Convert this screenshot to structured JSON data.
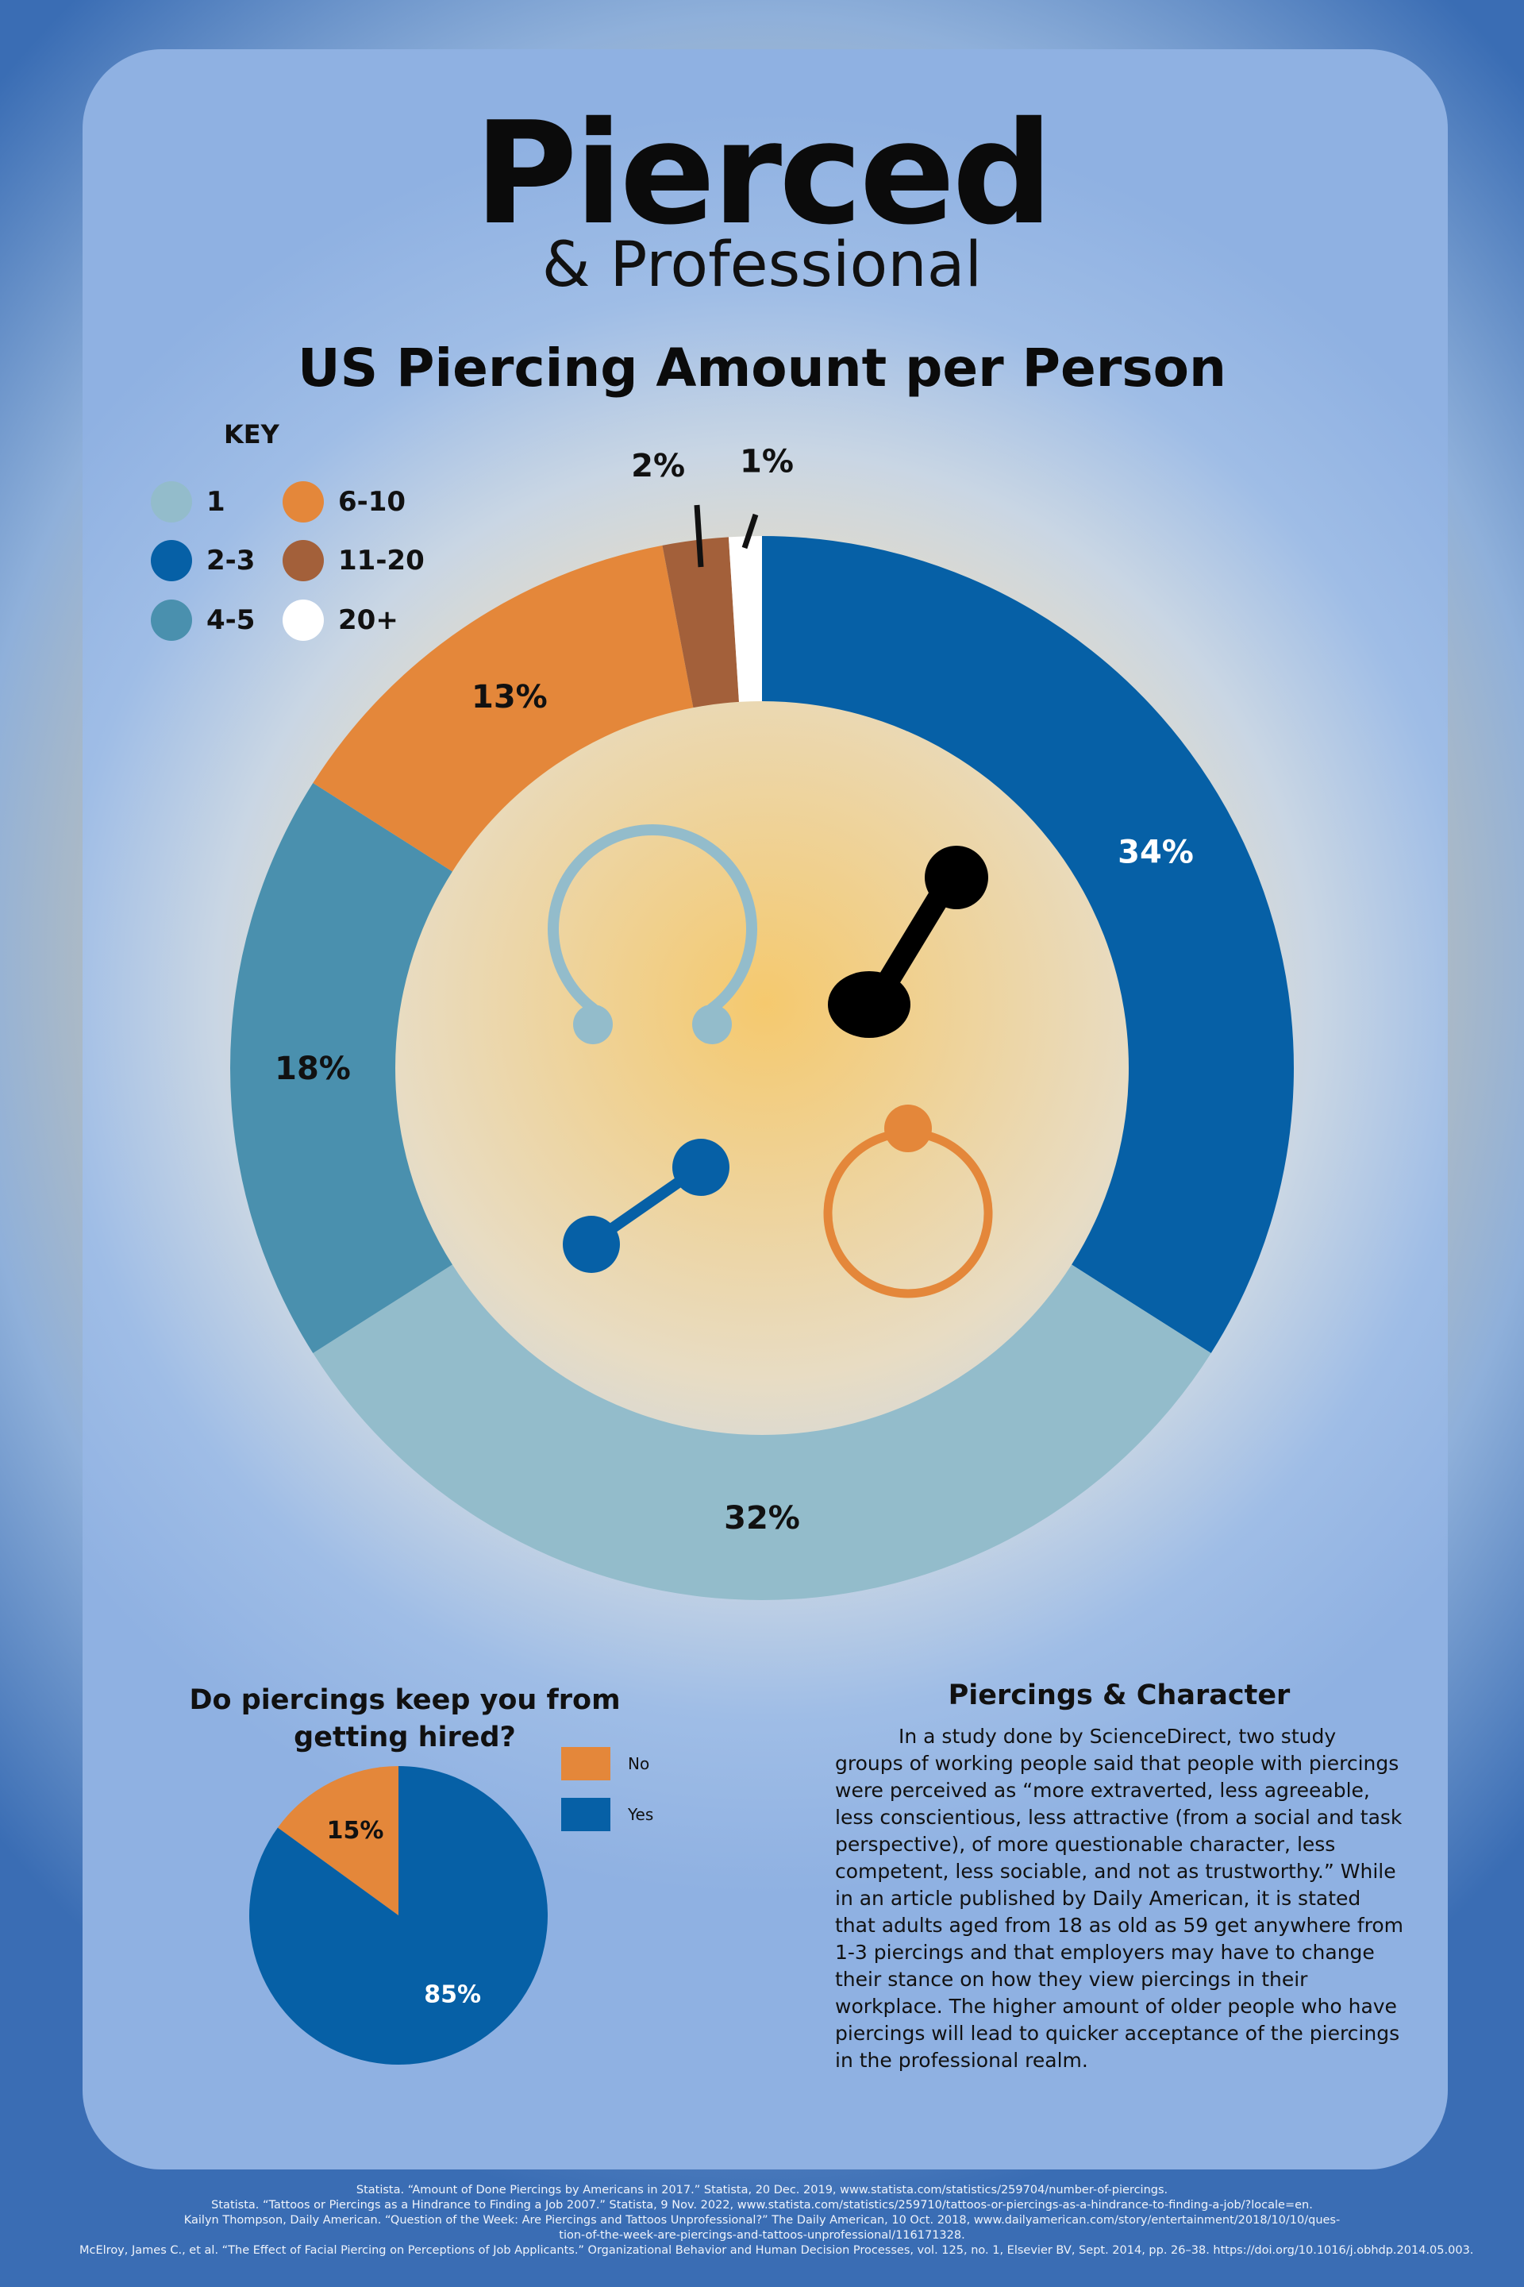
{
  "logo": {
    "main": "Pierced",
    "sub": "& Professional"
  },
  "title": "US Piercing Amount per Person",
  "key": {
    "title": "KEY",
    "items": [
      {
        "label": "1",
        "color": "#93bccb"
      },
      {
        "label": "2-3",
        "color": "#0660a6"
      },
      {
        "label": "4-5",
        "color": "#4a90ae"
      },
      {
        "label": "6-10",
        "color": "#e4873a"
      },
      {
        "label": "11-20",
        "color": "#a3603a"
      },
      {
        "label": "20+",
        "color": "#ffffff"
      }
    ]
  },
  "chart_data": [
    {
      "type": "pie",
      "title": "US Piercing Amount per Person",
      "categories": [
        "2-3",
        "1",
        "4-5",
        "6-10",
        "11-20",
        "20+"
      ],
      "values": [
        34,
        32,
        18,
        13,
        2,
        1
      ],
      "labels": [
        "34%",
        "32%",
        "18%",
        "13%",
        "2%",
        "1%"
      ],
      "colors": [
        "#0660a6",
        "#93bccb",
        "#4a90ae",
        "#e4873a",
        "#a3603a",
        "#ffffff"
      ],
      "legend": "top-left"
    },
    {
      "type": "pie",
      "title": "Do piercings keep you from getting hired?",
      "categories": [
        "No",
        "Yes"
      ],
      "values": [
        15,
        85
      ],
      "labels": [
        "15%",
        "85%"
      ],
      "colors": [
        "#e4873a",
        "#0660a6"
      ],
      "legend": "right"
    }
  ],
  "pie": {
    "title": "Do piercings keep you from getting hired?",
    "legend": [
      {
        "label": "No",
        "color": "#e4873a"
      },
      {
        "label": "Yes",
        "color": "#0660a6"
      }
    ]
  },
  "character": {
    "title": "Piercings & Character",
    "body": "In a study done by ScienceDirect, two study groups of working people  said that people with piercings were perceived as “more extraverted, less agreeable, less conscientious, less attractive (from a social and task perspective), of more questionable character, less competent, less sociable, and not as trustworthy.” While in an article published by Daily American, it is stated that adults aged from 18 as old as 59 get anywhere from 1-3 piercings and that employers may have to change their stance on how they view piercings in their workplace. The higher amount of older people who have piercings will lead to quicker acceptance of the piercings in the professional realm."
  },
  "references": [
    "Statista. “Amount of Done Piercings by Americans in 2017.” Statista, 20 Dec. 2019, www.statista.com/statistics/259704/number-of-piercings.",
    "Statista. “Tattoos or Piercings as a Hindrance to Finding a Job 2007.” Statista, 9 Nov. 2022, www.statista.com/statistics/259710/tattoos-or-piercings-as-a-hindrance-to-finding-a-job/?locale=en.",
    "Kailyn Thompson, Daily American. “Question of the Week: Are Piercings and Tattoos Unprofessional?” The Daily American, 10 Oct. 2018, www.dailyamerican.com/story/entertainment/2018/10/10/ques-",
    "tion-of-the-week-are-piercings-and-tattoos-unprofessional/116171328.",
    "McElroy, James C., et al. “The Effect of Facial Piercing on Perceptions of Job Applicants.” Organizational Behavior and Human Decision Processes, vol. 125, no. 1, Elsevier BV, Sept. 2014, pp. 26–38. https://doi.org/10.1016/j.obhdp.2014.05.003."
  ]
}
